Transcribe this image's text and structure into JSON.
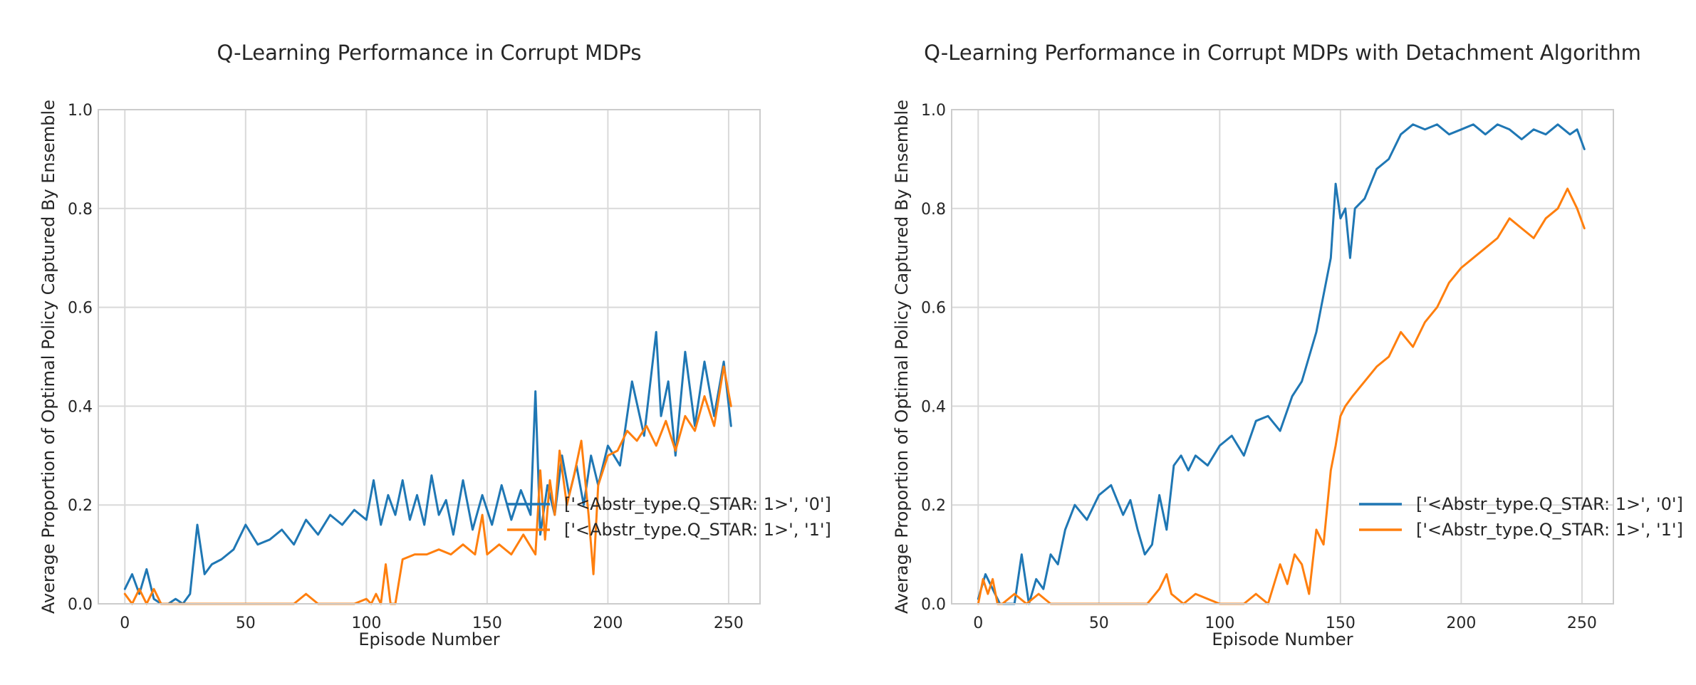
{
  "colors": {
    "series0": "#1f77b4",
    "series1": "#ff7f0e",
    "grid": "#d9d9d9",
    "frame": "#cccccc"
  },
  "chart_data": [
    {
      "type": "line",
      "title": "Q-Learning Performance in Corrupt MDPs",
      "xlabel": "Episode Number",
      "ylabel": "Average Proportion of Optimal Policy Captured By Ensemble",
      "xlim": [
        -11,
        263
      ],
      "ylim": [
        0,
        1.0
      ],
      "xticks": [
        0,
        50,
        100,
        150,
        200,
        250
      ],
      "yticks": [
        0.0,
        0.2,
        0.4,
        0.6,
        0.8,
        1.0
      ],
      "grid": true,
      "legend_position": "center-right",
      "series": [
        {
          "name": "['<Abstr_type.Q_STAR: 1>', '0']",
          "x": [
            0,
            3,
            6,
            9,
            12,
            15,
            18,
            21,
            24,
            27,
            30,
            33,
            36,
            40,
            45,
            50,
            55,
            60,
            65,
            70,
            75,
            80,
            85,
            90,
            95,
            100,
            103,
            106,
            109,
            112,
            115,
            118,
            121,
            124,
            127,
            130,
            133,
            136,
            140,
            144,
            148,
            152,
            156,
            160,
            164,
            168,
            170,
            172,
            175,
            178,
            181,
            184,
            187,
            190,
            193,
            196,
            200,
            205,
            210,
            215,
            220,
            222,
            225,
            228,
            232,
            236,
            240,
            244,
            248,
            251
          ],
          "y": [
            0.03,
            0.06,
            0.02,
            0.07,
            0.01,
            0.0,
            0.0,
            0.01,
            0.0,
            0.02,
            0.16,
            0.06,
            0.08,
            0.09,
            0.11,
            0.16,
            0.12,
            0.13,
            0.15,
            0.12,
            0.17,
            0.14,
            0.18,
            0.16,
            0.19,
            0.17,
            0.25,
            0.16,
            0.22,
            0.18,
            0.25,
            0.17,
            0.22,
            0.16,
            0.26,
            0.18,
            0.21,
            0.14,
            0.25,
            0.15,
            0.22,
            0.16,
            0.24,
            0.17,
            0.23,
            0.18,
            0.43,
            0.14,
            0.24,
            0.18,
            0.3,
            0.22,
            0.28,
            0.2,
            0.3,
            0.24,
            0.32,
            0.28,
            0.45,
            0.34,
            0.55,
            0.38,
            0.45,
            0.3,
            0.51,
            0.36,
            0.49,
            0.38,
            0.49,
            0.36
          ]
        },
        {
          "name": "['<Abstr_type.Q_STAR: 1>', '1']",
          "x": [
            0,
            3,
            6,
            9,
            12,
            15,
            20,
            30,
            40,
            50,
            60,
            70,
            75,
            80,
            90,
            95,
            100,
            102,
            104,
            106,
            108,
            110,
            112,
            115,
            120,
            125,
            130,
            135,
            140,
            145,
            148,
            150,
            155,
            160,
            165,
            170,
            172,
            174,
            176,
            178,
            180,
            183,
            186,
            189,
            192,
            194,
            196,
            200,
            204,
            208,
            212,
            216,
            220,
            224,
            228,
            232,
            236,
            240,
            244,
            248,
            251
          ],
          "y": [
            0.02,
            0.0,
            0.03,
            0.0,
            0.03,
            0.0,
            0.0,
            0.0,
            0.0,
            0.0,
            0.0,
            0.0,
            0.02,
            0.0,
            0.0,
            0.0,
            0.01,
            0.0,
            0.02,
            0.0,
            0.08,
            0.0,
            0.0,
            0.09,
            0.1,
            0.1,
            0.11,
            0.1,
            0.12,
            0.1,
            0.18,
            0.1,
            0.12,
            0.1,
            0.14,
            0.1,
            0.27,
            0.13,
            0.25,
            0.18,
            0.31,
            0.2,
            0.26,
            0.33,
            0.18,
            0.06,
            0.24,
            0.3,
            0.31,
            0.35,
            0.33,
            0.36,
            0.32,
            0.37,
            0.31,
            0.38,
            0.35,
            0.42,
            0.36,
            0.48,
            0.4
          ]
        }
      ]
    },
    {
      "type": "line",
      "title": "Q-Learning Performance in Corrupt MDPs with Detachment Algorithm",
      "xlabel": "Episode Number",
      "ylabel": "Average Proportion of Optimal Policy Captured By Ensemble",
      "xlim": [
        -11,
        263
      ],
      "ylim": [
        0,
        1.0
      ],
      "xticks": [
        0,
        50,
        100,
        150,
        200,
        250
      ],
      "yticks": [
        0.0,
        0.2,
        0.4,
        0.6,
        0.8,
        1.0
      ],
      "grid": true,
      "legend_position": "lower-right",
      "series": [
        {
          "name": "['<Abstr_type.Q_STAR: 1>', '0']",
          "x": [
            0,
            3,
            6,
            9,
            12,
            15,
            18,
            21,
            24,
            27,
            30,
            33,
            36,
            40,
            45,
            50,
            55,
            60,
            63,
            66,
            69,
            72,
            75,
            78,
            81,
            84,
            87,
            90,
            95,
            100,
            105,
            110,
            115,
            120,
            125,
            130,
            134,
            137,
            140,
            142,
            144,
            146,
            148,
            150,
            152,
            154,
            156,
            160,
            165,
            170,
            175,
            180,
            185,
            190,
            195,
            200,
            205,
            210,
            215,
            220,
            225,
            230,
            235,
            240,
            245,
            248,
            251
          ],
          "y": [
            0.01,
            0.06,
            0.03,
            0.0,
            0.0,
            0.0,
            0.1,
            0.0,
            0.05,
            0.03,
            0.1,
            0.08,
            0.15,
            0.2,
            0.17,
            0.22,
            0.24,
            0.18,
            0.21,
            0.15,
            0.1,
            0.12,
            0.22,
            0.15,
            0.28,
            0.3,
            0.27,
            0.3,
            0.28,
            0.32,
            0.34,
            0.3,
            0.37,
            0.38,
            0.35,
            0.42,
            0.45,
            0.5,
            0.55,
            0.6,
            0.65,
            0.7,
            0.85,
            0.78,
            0.8,
            0.7,
            0.8,
            0.82,
            0.88,
            0.9,
            0.95,
            0.97,
            0.96,
            0.97,
            0.95,
            0.96,
            0.97,
            0.95,
            0.97,
            0.96,
            0.94,
            0.96,
            0.95,
            0.97,
            0.95,
            0.96,
            0.92
          ]
        },
        {
          "name": "['<Abstr_type.Q_STAR: 1>', '1']",
          "x": [
            0,
            2,
            4,
            6,
            8,
            10,
            15,
            20,
            25,
            30,
            40,
            50,
            60,
            70,
            75,
            78,
            80,
            85,
            90,
            100,
            110,
            115,
            120,
            125,
            128,
            131,
            134,
            137,
            140,
            143,
            146,
            148,
            150,
            152,
            155,
            160,
            165,
            170,
            175,
            180,
            185,
            190,
            195,
            200,
            205,
            210,
            215,
            220,
            225,
            230,
            235,
            240,
            244,
            248,
            251
          ],
          "y": [
            0.0,
            0.05,
            0.02,
            0.05,
            0.0,
            0.0,
            0.02,
            0.0,
            0.02,
            0.0,
            0.0,
            0.0,
            0.0,
            0.0,
            0.03,
            0.06,
            0.02,
            0.0,
            0.02,
            0.0,
            0.0,
            0.02,
            0.0,
            0.08,
            0.04,
            0.1,
            0.08,
            0.02,
            0.15,
            0.12,
            0.27,
            0.32,
            0.38,
            0.4,
            0.42,
            0.45,
            0.48,
            0.5,
            0.55,
            0.52,
            0.57,
            0.6,
            0.65,
            0.68,
            0.7,
            0.72,
            0.74,
            0.78,
            0.76,
            0.74,
            0.78,
            0.8,
            0.84,
            0.8,
            0.76
          ]
        }
      ]
    }
  ]
}
